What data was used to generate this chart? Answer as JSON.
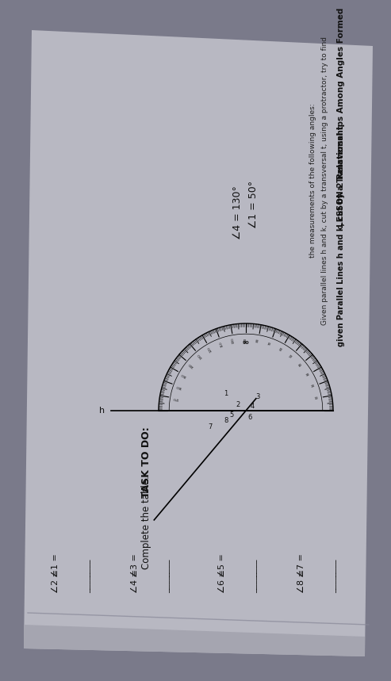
{
  "bg_color": "#7a7a8a",
  "paper_color": "#b5b5c0",
  "title": "LESSON 2 Relationships Among Angles Formed",
  "subtitle_bold": "given Parallel Lines h and k, cut by a Transversal t",
  "intro1": "Given parallel lines h and k, cut by a transversal t, using a protractor, try to find",
  "intro2": "the measurements of the following angles:",
  "angle1": "∠1 = 50°",
  "angle4": "∠4 = 130°",
  "task_bold": "TASK TO DO:",
  "task_text": "Complete the table.",
  "row1": [
    "∠1 =",
    "____",
    "∠3 =",
    "____",
    "∠5 =",
    "____",
    "∠7 =",
    "____"
  ],
  "row2": [
    "∠2 =",
    "____",
    "∠4 =",
    "____",
    "∠6 =",
    "____",
    "∠8 =",
    "____"
  ],
  "page_rotation": 90,
  "page_tilt": 5
}
